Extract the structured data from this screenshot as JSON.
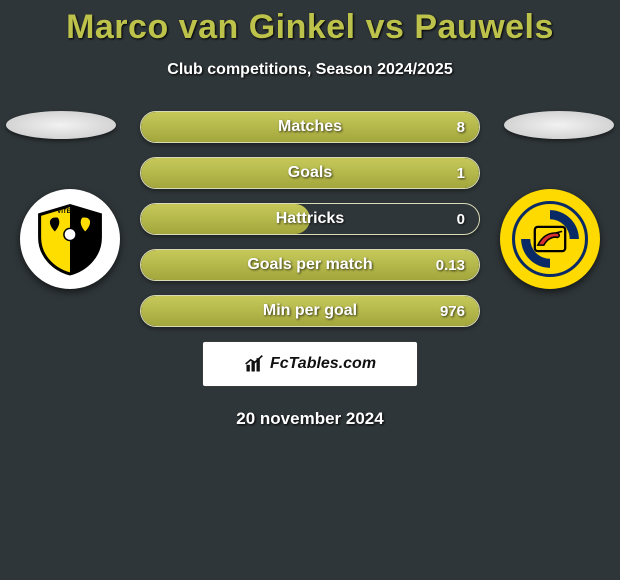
{
  "title": "Marco van Ginkel vs Pauwels",
  "subtitle": "Club competitions, Season 2024/2025",
  "date": "20 november 2024",
  "brand": "FcTables.com",
  "colors": {
    "background": "#2f3639",
    "accent": "#bcc24a",
    "bar_fill_top": "#c6c95a",
    "bar_fill_bottom": "#a3a63c",
    "bar_border": "#d9dbb6",
    "text": "#ffffff"
  },
  "clubs": {
    "left": {
      "name": "Vitesse",
      "colors": [
        "#000000",
        "#fedd00",
        "#ffffff"
      ]
    },
    "right": {
      "name": "SC Cambuur",
      "colors": [
        "#feda00",
        "#0a2a66",
        "#d92f2f"
      ]
    }
  },
  "stats": [
    {
      "label": "Matches",
      "value": "8",
      "fill_pct": 100
    },
    {
      "label": "Goals",
      "value": "1",
      "fill_pct": 100
    },
    {
      "label": "Hattricks",
      "value": "0",
      "fill_pct": 50
    },
    {
      "label": "Goals per match",
      "value": "0.13",
      "fill_pct": 100
    },
    {
      "label": "Min per goal",
      "value": "976",
      "fill_pct": 100
    }
  ]
}
